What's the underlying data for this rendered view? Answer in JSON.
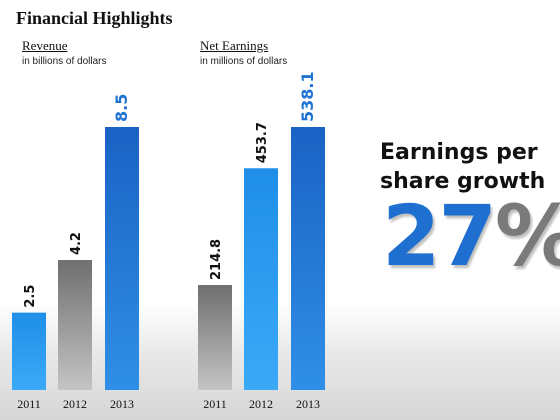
{
  "title": "Financial Highlights",
  "chart_data": [
    {
      "type": "bar",
      "title": "Revenue",
      "subtitle": "in billions of dollars",
      "categories": [
        "2011",
        "2012",
        "2013"
      ],
      "values": [
        2.5,
        4.2,
        8.5
      ],
      "value_labels": [
        "2.5",
        "4.2",
        "8.5"
      ],
      "bar_colors": [
        "#2c9cf0",
        "#8e8e8e",
        "#1f74d2"
      ],
      "label_colors": [
        "#111111",
        "#111111",
        "#1f74d2"
      ],
      "ylim": [
        0,
        8.5
      ],
      "grid": false
    },
    {
      "type": "bar",
      "title": "Net Earnings",
      "subtitle": "in millions of dollars",
      "categories": [
        "2011",
        "2012",
        "2013"
      ],
      "values": [
        214.8,
        453.7,
        538.1
      ],
      "value_labels": [
        "214.8",
        "453.7",
        "538.1"
      ],
      "bar_colors": [
        "#8e8e8e",
        "#2c9cf0",
        "#1f74d2"
      ],
      "label_colors": [
        "#111111",
        "#111111",
        "#1f74d2"
      ],
      "ylim": [
        0,
        538.1
      ],
      "grid": false
    }
  ],
  "eps": {
    "label": "Earnings per share growth",
    "number": "27",
    "percent": "%"
  }
}
